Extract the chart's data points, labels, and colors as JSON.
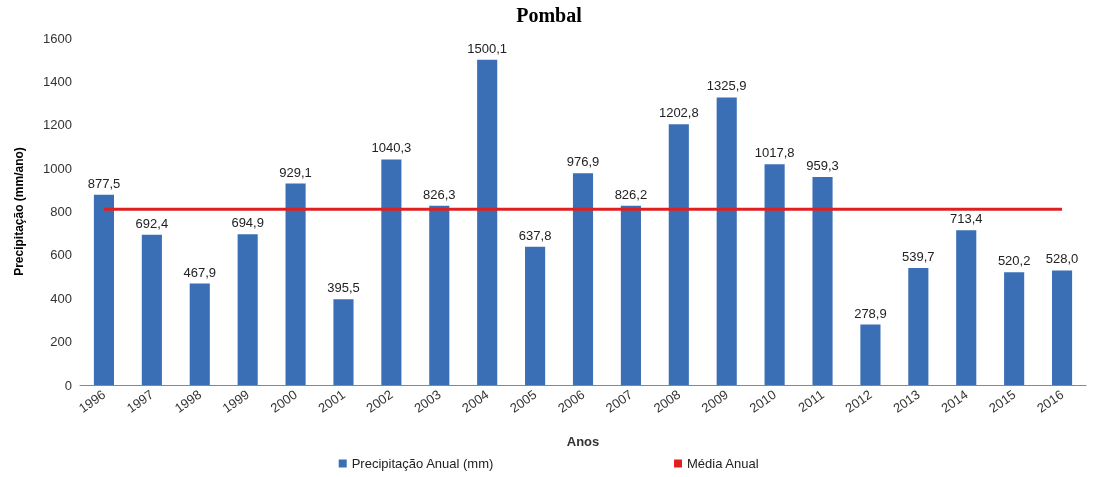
{
  "chart_data": {
    "type": "bar",
    "title": "Pombal",
    "xlabel": "Anos",
    "ylabel": "Precipitação (mm/ano)",
    "categories": [
      "1996",
      "1997",
      "1998",
      "1999",
      "2000",
      "2001",
      "2002",
      "2003",
      "2004",
      "2005",
      "2006",
      "2007",
      "2008",
      "2009",
      "2010",
      "2011",
      "2012",
      "2013",
      "2014",
      "2015",
      "2016"
    ],
    "series": [
      {
        "name": "Precipitação Anual (mm)",
        "color": "#3a6fb5",
        "values": [
          877.5,
          692.4,
          467.9,
          694.9,
          929.1,
          395.5,
          1040.3,
          826.3,
          1500.1,
          637.8,
          976.9,
          826.2,
          1202.8,
          1325.9,
          1017.8,
          959.3,
          278.9,
          539.7,
          713.4,
          520.2,
          528.0
        ],
        "value_labels": [
          "877,5",
          "692,4",
          "467,9",
          "694,9",
          "929,1",
          "395,5",
          "1040,3",
          "826,3",
          "1500,1",
          "637,8",
          "976,9",
          "826,2",
          "1202,8",
          "1325,9",
          "1017,8",
          "959,3",
          "278,9",
          "539,7",
          "713,4",
          "520,2",
          "528,0"
        ]
      },
      {
        "name": "Média Anual",
        "type": "line",
        "color": "#e02020",
        "values": [
          810,
          810,
          810,
          810,
          810,
          810,
          810,
          810,
          810,
          810,
          810,
          810,
          810,
          810,
          810,
          810,
          810,
          810,
          810,
          810,
          810
        ]
      }
    ],
    "ylim": [
      0,
      1600
    ],
    "yticks": [
      0,
      200,
      400,
      600,
      800,
      1000,
      1200,
      1400,
      1600
    ],
    "grid": false,
    "legend": "bottom",
    "marker": "none"
  }
}
